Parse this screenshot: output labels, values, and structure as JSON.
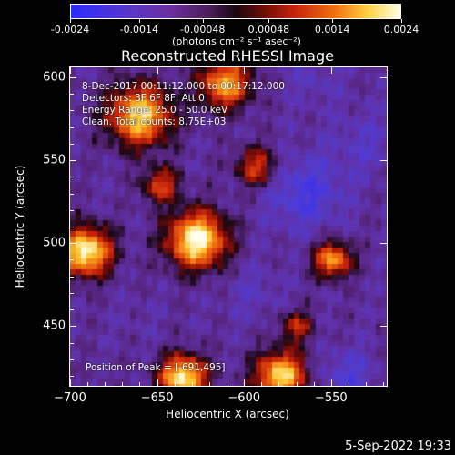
{
  "colorbar": {
    "ticks": [
      "-0.0024",
      "-0.0014",
      "-0.00048",
      "0.00048",
      "0.0014",
      "0.0024"
    ],
    "units_text": "(photons cm⁻² s⁻¹ asec⁻²)"
  },
  "title": "Reconstructed RHESSI Image",
  "info": {
    "line1": "8-Dec-2017 00:11:12.000 to 00:17:12.000",
    "line2": "Detectors: 3F 6F 8F, Att 0",
    "line3": "Energy Range: 25.0 - 50.0 keV",
    "line4": "Clean.  Total counts: 8.75E+03",
    "position": "Position of Peak = [-691,495]"
  },
  "timestamp": "5-Sep-2022 19:33",
  "chart_data": {
    "type": "heatmap",
    "title": "Reconstructed RHESSI Image",
    "xlabel": "Heliocentric X (arcsec)",
    "ylabel": "Heliocentric Y (arcsec)",
    "xlim": [
      -700,
      -518
    ],
    "ylim": [
      414,
      606
    ],
    "xticks": [
      -700,
      -650,
      -600,
      -550
    ],
    "yticks": [
      450,
      500,
      550,
      600
    ],
    "colorbar_range": [
      -0.0024,
      0.0024
    ],
    "colorbar_ticks": [
      -0.0024,
      -0.0014,
      -0.00048,
      0.00048,
      0.0014,
      0.0024
    ],
    "grid": false,
    "sources": [
      {
        "x": -627,
        "y": 502,
        "level": 1.0,
        "size": 14
      },
      {
        "x": -691,
        "y": 495,
        "level": 1.0,
        "size": 12
      },
      {
        "x": -660,
        "y": 577,
        "level": 0.85,
        "size": 15
      },
      {
        "x": -611,
        "y": 596,
        "level": 0.7,
        "size": 12
      },
      {
        "x": -635,
        "y": 419,
        "level": 0.95,
        "size": 11
      },
      {
        "x": -579,
        "y": 420,
        "level": 0.85,
        "size": 12
      },
      {
        "x": -549,
        "y": 490,
        "level": 0.65,
        "size": 9
      },
      {
        "x": -593,
        "y": 546,
        "level": 0.35,
        "size": 10
      },
      {
        "x": -648,
        "y": 535,
        "level": 0.35,
        "size": 9
      },
      {
        "x": -570,
        "y": 450,
        "level": 0.25,
        "size": 8
      }
    ],
    "negative_regions": [
      {
        "x": -565,
        "y": 530,
        "level": -0.7,
        "size": 18
      },
      {
        "x": -530,
        "y": 560,
        "level": -0.5,
        "size": 16
      },
      {
        "x": -595,
        "y": 470,
        "level": -0.45,
        "size": 14
      },
      {
        "x": -540,
        "y": 420,
        "level": -0.6,
        "size": 13
      },
      {
        "x": -660,
        "y": 455,
        "level": -0.35,
        "size": 12
      },
      {
        "x": -560,
        "y": 600,
        "level": -0.45,
        "size": 14
      }
    ]
  }
}
